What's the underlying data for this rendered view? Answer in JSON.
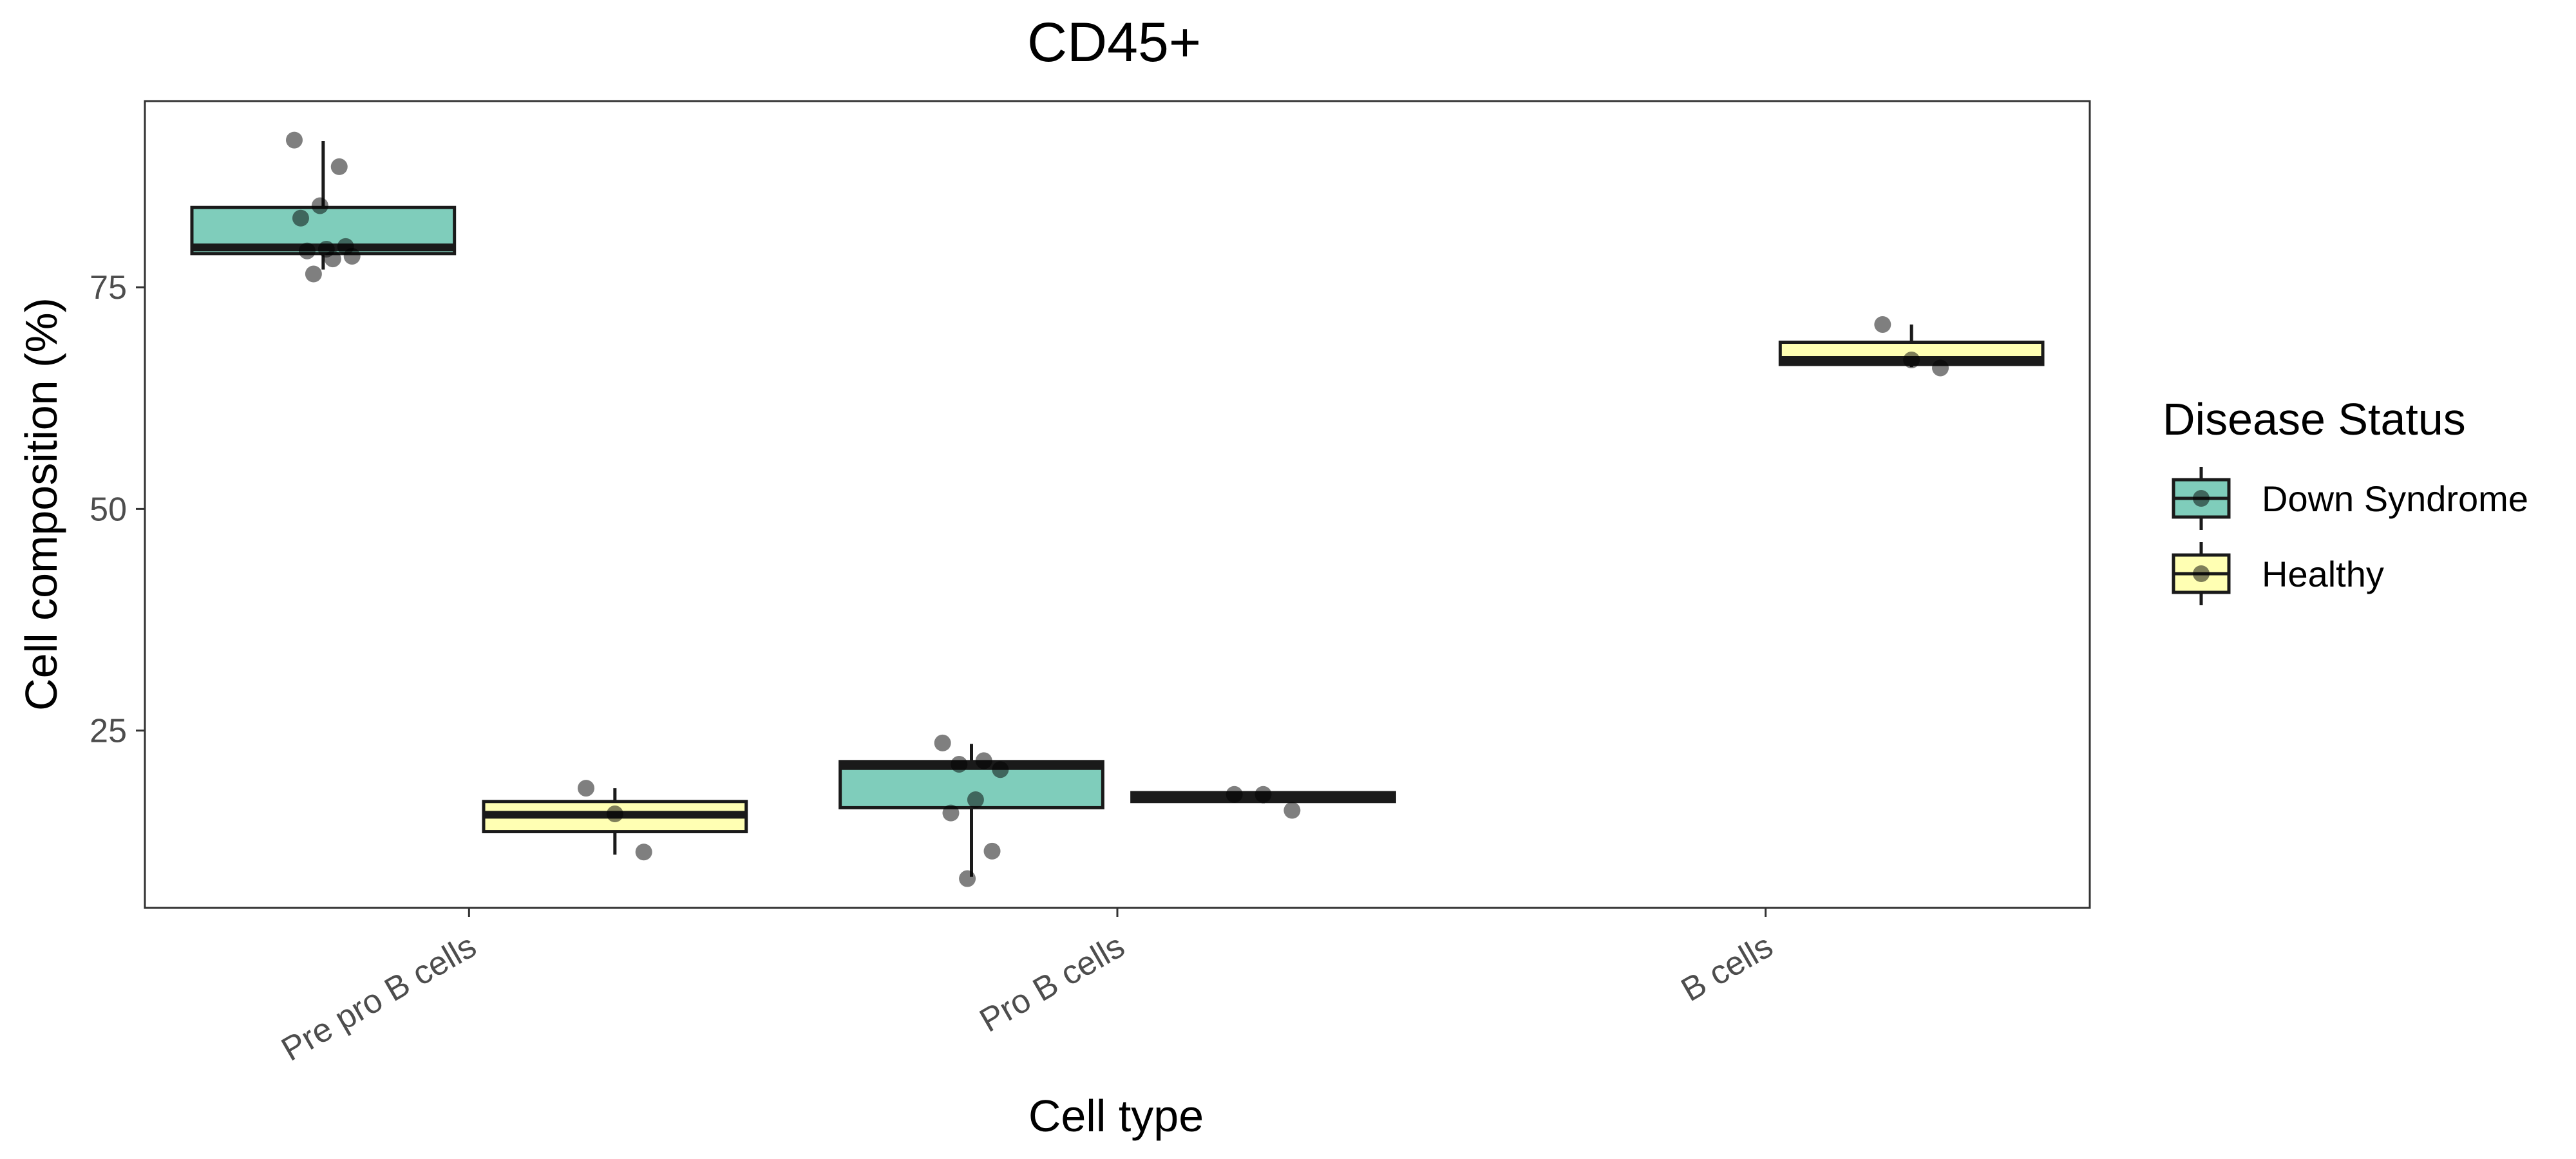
{
  "chart_data": {
    "type": "box",
    "title": "CD45+",
    "xlabel": "Cell type",
    "ylabel": "Cell composition (%)",
    "categories": [
      "Pre pro B cells",
      "Pro B cells",
      "B cells"
    ],
    "y_ticks": [
      25,
      50,
      75
    ],
    "ylim": [
      5,
      96
    ],
    "grid": false,
    "legend": {
      "title": "Disease Status",
      "placement": "right",
      "entries": [
        "Down Syndrome",
        "Healthy"
      ]
    },
    "series": [
      {
        "name": "Down Syndrome",
        "color": "#7fcdbb",
        "boxes": [
          {
            "category": "Pre pro B cells",
            "min": 77,
            "q1": 78.8,
            "median": 79.5,
            "q3": 84,
            "max": 91.5,
            "points": [
              91.6,
              88.6,
              84.2,
              82.8,
              79.6,
              79.3,
              79.1,
              78.5,
              78.2,
              76.5
            ]
          },
          {
            "category": "Pro B cells",
            "min": 8.5,
            "q1": 16.3,
            "median": 21,
            "q3": 21.5,
            "max": 23.5,
            "points": [
              23.6,
              21.6,
              21.2,
              20.6,
              17.2,
              15.7,
              11.4,
              8.3
            ]
          },
          null
        ]
      },
      {
        "name": "Healthy",
        "color": "#ffffb3",
        "boxes": [
          {
            "category": "Pre pro B cells",
            "min": 11,
            "q1": 13.6,
            "median": 15.5,
            "q3": 17,
            "max": 18.5,
            "points": [
              18.5,
              15.6,
              11.3
            ]
          },
          {
            "category": "Pro B cells",
            "min": 16.8,
            "q1": 17,
            "median": 17.5,
            "q3": 18,
            "max": 18,
            "points": [
              17.8,
              17.8,
              16.0
            ]
          },
          {
            "category": "B cells",
            "min": 66,
            "q1": 66.3,
            "median": 66.8,
            "q3": 68.8,
            "max": 70.8,
            "points": [
              70.8,
              66.8,
              65.9
            ]
          }
        ]
      }
    ]
  }
}
